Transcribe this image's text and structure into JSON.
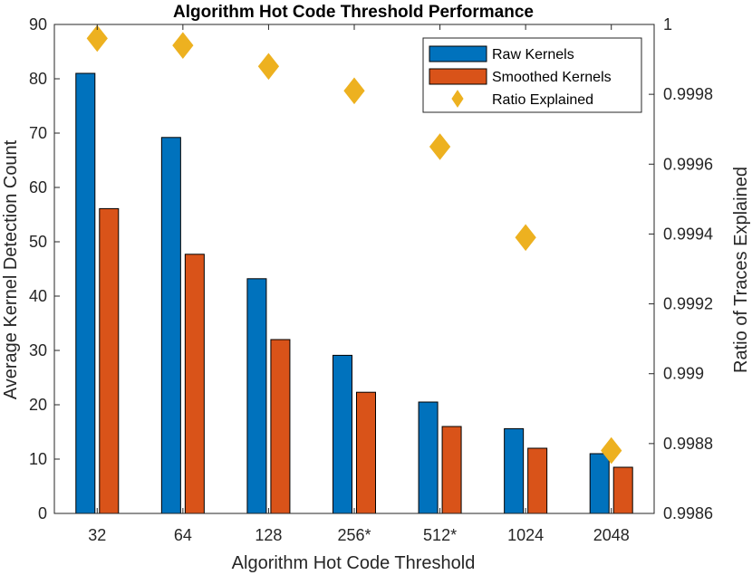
{
  "chart_data": {
    "type": "bar",
    "title": "Algorithm Hot Code Threshold Performance",
    "xlabel": "Algorithm Hot Code Threshold",
    "ylabel": "Average Kernel Detection Count",
    "ylabel_right": "Ratio of Traces Explained",
    "categories": [
      "32",
      "64",
      "128",
      "256*",
      "512*",
      "1024",
      "2048"
    ],
    "ylim": [
      0,
      90
    ],
    "yticks": [
      0,
      10,
      20,
      30,
      40,
      50,
      60,
      70,
      80,
      90
    ],
    "ylim_right": [
      0.9986,
      1.0
    ],
    "yticks_right": [
      {
        "value": 0.9986,
        "label": "0.9986"
      },
      {
        "value": 0.9988,
        "label": "0.9988"
      },
      {
        "value": 0.999,
        "label": "0.999"
      },
      {
        "value": 0.9992,
        "label": "0.9992"
      },
      {
        "value": 0.9994,
        "label": "0.9994"
      },
      {
        "value": 0.9996,
        "label": "0.9996"
      },
      {
        "value": 0.9998,
        "label": "0.9998"
      },
      {
        "value": 1.0,
        "label": "1"
      }
    ],
    "series": [
      {
        "name": "Raw Kernels",
        "type": "bar",
        "axis": "left",
        "color": "#0072BD",
        "values": [
          81.0,
          69.2,
          43.2,
          29.1,
          20.5,
          15.6,
          11.0
        ]
      },
      {
        "name": "Smoothed Kernels",
        "type": "bar",
        "axis": "left",
        "color": "#D95319",
        "values": [
          56.1,
          47.7,
          32.0,
          22.3,
          16.0,
          12.0,
          8.5
        ]
      },
      {
        "name": "Ratio Explained",
        "type": "scatter",
        "marker": "diamond",
        "axis": "right",
        "color": "#EDB120",
        "values": [
          0.99996,
          0.99994,
          0.99988,
          0.99981,
          0.99965,
          0.99939,
          0.99878
        ]
      }
    ],
    "legend_position": "top-right"
  }
}
